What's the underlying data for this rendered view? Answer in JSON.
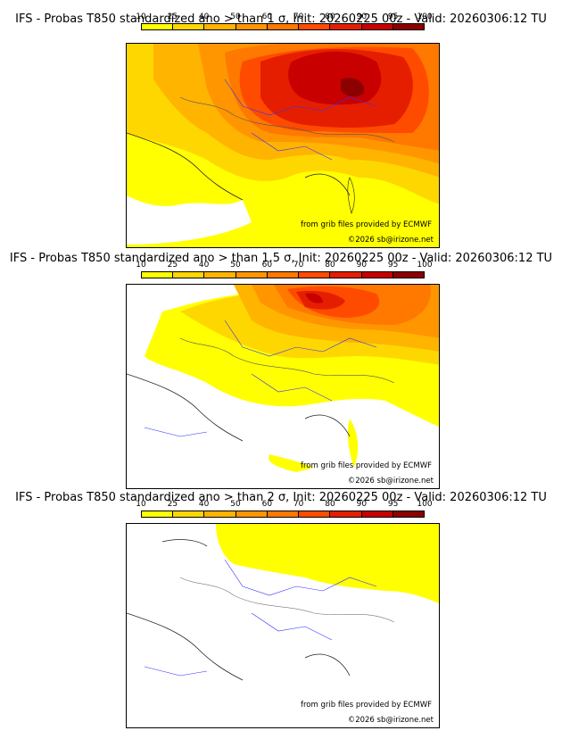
{
  "colorbar": {
    "ticks": [
      "10",
      "25",
      "40",
      "50",
      "60",
      "70",
      "80",
      "90",
      "95",
      "100"
    ],
    "colors": [
      "#ffff00",
      "#ffd700",
      "#ffb400",
      "#ff9600",
      "#ff7800",
      "#ff4b00",
      "#e61e00",
      "#c80000",
      "#8c0000"
    ]
  },
  "panels": [
    {
      "title": "IFS - Probas T850  standardized ano > than 1 σ, Init: 20260225 00z - Valid: 20260306:12 TU",
      "credit_source": "from grib files provided by ECMWF",
      "credit_copyright": "©2026 sb@irizone.net"
    },
    {
      "title": "IFS - Probas T850  standardized ano > than 1.5 σ, Init: 20260225 00z - Valid: 20260306:12 TU",
      "credit_source": "from grib files provided by ECMWF",
      "credit_copyright": "©2026 sb@irizone.net"
    },
    {
      "title": "IFS - Probas T850  standardized ano > than 2 σ, Init: 20260225 00z - Valid: 20260306:12 TU",
      "credit_source": "from grib files provided by ECMWF",
      "credit_copyright": "©2026 sb@irizone.net"
    }
  ]
}
